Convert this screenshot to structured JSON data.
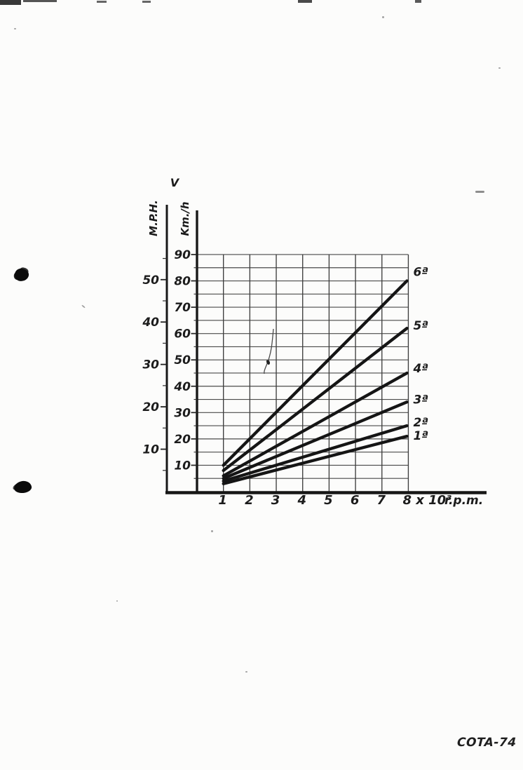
{
  "page": {
    "footer_label": "COTA-74"
  },
  "chart_data": {
    "type": "line",
    "title": "",
    "y_axis_title": "V",
    "primary_y_axis": {
      "label": "Km./h",
      "tick_labels": [
        90,
        80,
        70,
        60,
        50,
        40,
        30,
        20,
        10
      ],
      "grid_step_kmh": 5,
      "range_kmh": [
        0,
        90
      ]
    },
    "secondary_y_axis": {
      "label": "M.P.H.",
      "tick_labels": [
        50,
        40,
        30,
        20,
        10
      ],
      "minor_tick_step_mph": 5,
      "range_mph": [
        0,
        56
      ]
    },
    "x_axis": {
      "tick_labels": [
        "1",
        "2",
        "3",
        "4",
        "5",
        "6",
        "7"
      ],
      "last_tick_label": "8 x 10³",
      "unit_label": "r.p.m.",
      "range_rpm_thousands": [
        0,
        8
      ]
    },
    "series": [
      {
        "name": "6ª",
        "points_rpm1000_kmh": [
          [
            1,
            10
          ],
          [
            8,
            80
          ]
        ]
      },
      {
        "name": "5ª",
        "points_rpm1000_kmh": [
          [
            1,
            8
          ],
          [
            8,
            62
          ]
        ]
      },
      {
        "name": "4ª",
        "points_rpm1000_kmh": [
          [
            1,
            6
          ],
          [
            8,
            45
          ]
        ]
      },
      {
        "name": "3ª",
        "points_rpm1000_kmh": [
          [
            1,
            5
          ],
          [
            8,
            34
          ]
        ]
      },
      {
        "name": "2ª",
        "points_rpm1000_kmh": [
          [
            1,
            4
          ],
          [
            8,
            25
          ]
        ]
      },
      {
        "name": "1ª",
        "points_rpm1000_kmh": [
          [
            1,
            3
          ],
          [
            8,
            21
          ]
        ]
      }
    ],
    "grid": true
  }
}
